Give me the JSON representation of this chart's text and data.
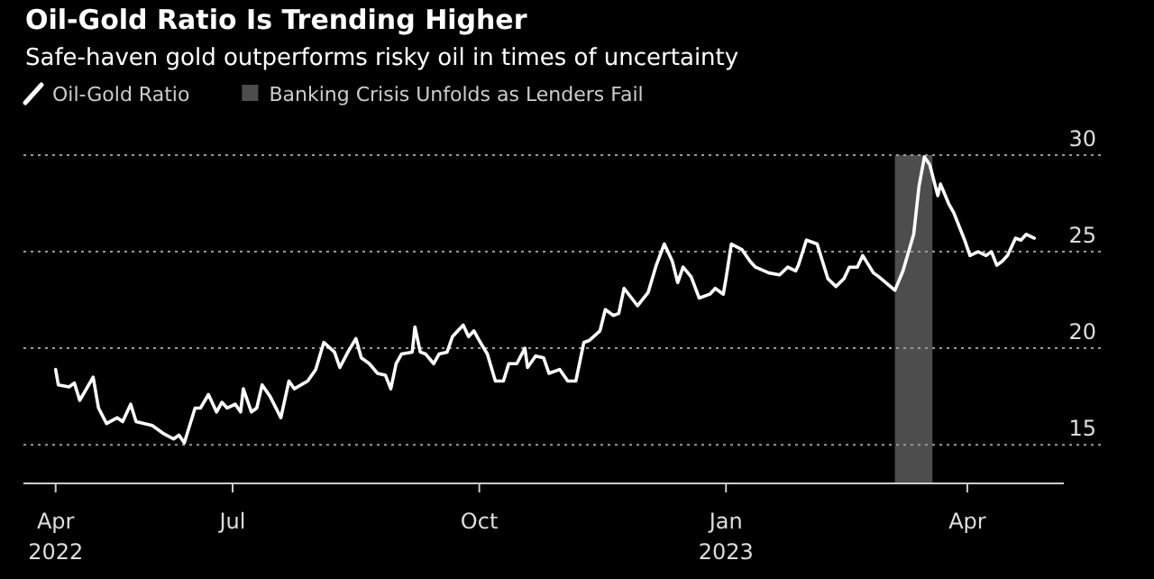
{
  "chart_data": {
    "type": "line",
    "title": "Oil-Gold Ratio Is Trending Higher",
    "subtitle": "Safe-haven gold outperforms risky oil in times of uncertainty",
    "series": [
      {
        "name": "Oil-Gold Ratio",
        "color": "#ffffff",
        "x": [
          "2022-04-26",
          "2022-04-27",
          "2022-05-01",
          "2022-05-03",
          "2022-05-05",
          "2022-05-10",
          "2022-05-12",
          "2022-05-15",
          "2022-05-19",
          "2022-05-21",
          "2022-05-24",
          "2022-05-26",
          "2022-06-01",
          "2022-06-05",
          "2022-06-09",
          "2022-06-11",
          "2022-06-13",
          "2022-06-17",
          "2022-06-19",
          "2022-06-22",
          "2022-06-25",
          "2022-06-27",
          "2022-06-29",
          "2022-07-02",
          "2022-07-04",
          "2022-07-05",
          "2022-07-08",
          "2022-07-10",
          "2022-07-12",
          "2022-07-15",
          "2022-07-19",
          "2022-07-22",
          "2022-07-24",
          "2022-07-29",
          "2022-08-01",
          "2022-08-04",
          "2022-08-08",
          "2022-08-10",
          "2022-08-13",
          "2022-08-16",
          "2022-08-18",
          "2022-08-21",
          "2022-08-24",
          "2022-08-27",
          "2022-08-29",
          "2022-08-31",
          "2022-09-02",
          "2022-09-06",
          "2022-09-07",
          "2022-09-09",
          "2022-09-11",
          "2022-09-14",
          "2022-09-16",
          "2022-09-19",
          "2022-09-21",
          "2022-09-25",
          "2022-09-27",
          "2022-09-29",
          "2022-10-01",
          "2022-10-04",
          "2022-10-07",
          "2022-10-10",
          "2022-10-12",
          "2022-10-15",
          "2022-10-18",
          "2022-10-19",
          "2022-10-22",
          "2022-10-25",
          "2022-10-27",
          "2022-10-31",
          "2022-11-03",
          "2022-11-06",
          "2022-11-09",
          "2022-11-11",
          "2022-11-15",
          "2022-11-17",
          "2022-11-20",
          "2022-11-22",
          "2022-11-24",
          "2022-11-29",
          "2022-12-03",
          "2022-12-06",
          "2022-12-09",
          "2022-12-12",
          "2022-12-14",
          "2022-12-16",
          "2022-12-19",
          "2022-12-22",
          "2022-12-26",
          "2022-12-28",
          "2022-12-31",
          "2023-01-01",
          "2023-01-03",
          "2023-01-07",
          "2023-01-10",
          "2023-01-12",
          "2023-01-17",
          "2023-01-21",
          "2023-01-24",
          "2023-01-27",
          "2023-01-28",
          "2023-01-31",
          "2023-02-04",
          "2023-02-06",
          "2023-02-08",
          "2023-02-11",
          "2023-02-14",
          "2023-02-16",
          "2023-02-19",
          "2023-02-21",
          "2023-02-25",
          "2023-02-27",
          "2023-03-05",
          "2023-03-08",
          "2023-03-12",
          "2023-03-14",
          "2023-03-16",
          "2023-03-18",
          "2023-03-21",
          "2023-03-22",
          "2023-03-25",
          "2023-03-27",
          "2023-03-31",
          "2023-04-02",
          "2023-04-05",
          "2023-04-08",
          "2023-04-10",
          "2023-04-12",
          "2023-04-14",
          "2023-04-16",
          "2023-04-19",
          "2023-04-21",
          "2023-04-23",
          "2023-04-26"
        ],
        "values": [
          18.9,
          18.1,
          18.0,
          18.2,
          17.3,
          18.5,
          16.9,
          16.1,
          16.4,
          16.2,
          17.1,
          16.2,
          16.0,
          15.6,
          15.3,
          15.5,
          15.1,
          16.9,
          16.9,
          17.6,
          16.7,
          17.2,
          16.9,
          17.1,
          16.7,
          17.9,
          16.7,
          16.9,
          18.1,
          17.5,
          16.4,
          18.3,
          17.9,
          18.3,
          18.9,
          20.3,
          19.8,
          19.0,
          19.8,
          20.5,
          19.5,
          19.2,
          18.7,
          18.6,
          17.9,
          19.2,
          19.7,
          19.8,
          21.1,
          19.8,
          19.7,
          19.2,
          19.7,
          19.8,
          20.6,
          21.2,
          20.6,
          20.9,
          20.4,
          19.7,
          18.3,
          18.3,
          19.2,
          19.2,
          20.0,
          19.0,
          19.6,
          19.5,
          18.7,
          18.9,
          18.3,
          18.3,
          20.3,
          20.4,
          20.9,
          22.0,
          21.7,
          21.8,
          23.1,
          22.2,
          22.9,
          24.3,
          25.4,
          24.5,
          23.4,
          24.2,
          23.7,
          22.6,
          22.8,
          23.1,
          22.8,
          23.6,
          25.4,
          25.1,
          24.5,
          24.2,
          23.9,
          23.8,
          24.2,
          24.0,
          24.3,
          25.6,
          25.4,
          24.5,
          23.6,
          23.2,
          23.6,
          24.2,
          24.2,
          24.8,
          23.9,
          23.7,
          23.0,
          24.0,
          25.9,
          28.4,
          29.9,
          29.5,
          27.9,
          28.5,
          27.5,
          27.0,
          25.6,
          24.8,
          25.0,
          24.8,
          25.0,
          24.3,
          24.5,
          24.8,
          25.7,
          25.6,
          25.9,
          25.7
        ]
      }
    ],
    "bands": [
      {
        "axis": "x",
        "from": "2023-03-05",
        "to": "2023-03-19",
        "label": "Banking Crisis Unfolds as Lenders Fail",
        "color": "#4d4d4d"
      }
    ],
    "xlim": [
      "2022-04-14",
      "2023-05-07"
    ],
    "xticks": [
      {
        "value": "2022-04-26",
        "label": "Apr 2022"
      },
      {
        "value": "2022-07-01",
        "label": "Jul"
      },
      {
        "value": "2022-10-01",
        "label": "Oct"
      },
      {
        "value": "2023-01-01",
        "label": "Jan 2023"
      },
      {
        "value": "2023-04-01",
        "label": "Apr"
      }
    ],
    "ylim": [
      13,
      30
    ],
    "yticks": [
      15,
      20,
      25,
      30
    ],
    "grid": "y",
    "legend": "top left",
    "line_style": "solid"
  }
}
